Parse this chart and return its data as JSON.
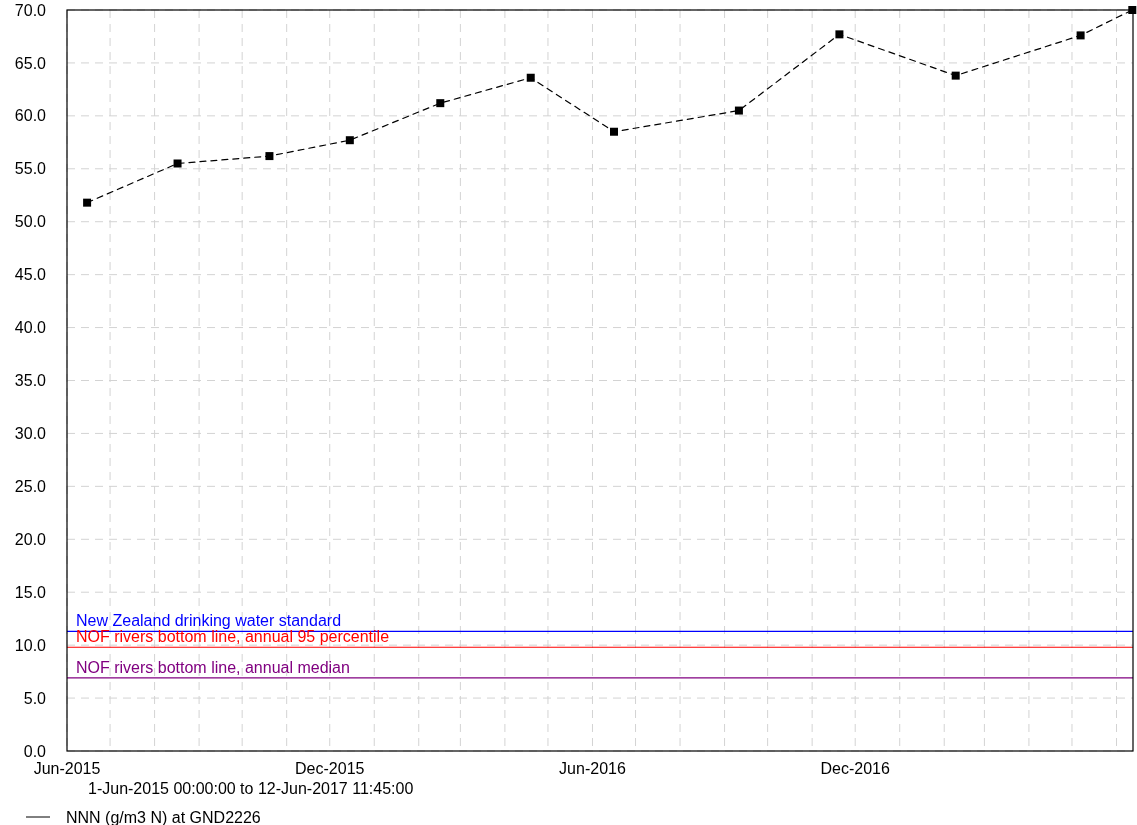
{
  "chart_data": {
    "type": "line",
    "xlabel": "1-Jun-2015 00:00:00 to 12-Jun-2017 11:45:00",
    "x": [
      "2015-06-15",
      "2015-08-17",
      "2015-10-20",
      "2015-12-15",
      "2016-02-16",
      "2016-04-19",
      "2016-06-16",
      "2016-09-11",
      "2016-11-20",
      "2017-02-09",
      "2017-05-07",
      "2017-06-12"
    ],
    "series": [
      {
        "name": "NNN (g/m3 N) at GND2226",
        "color": "#000000",
        "values": [
          51.8,
          55.5,
          56.2,
          57.7,
          61.2,
          63.6,
          58.5,
          60.5,
          67.7,
          63.8,
          67.6,
          70.0
        ]
      }
    ],
    "xlim": [
      "2015-06-01",
      "2017-06-12T11:45"
    ],
    "xticks": [
      {
        "value": "2015-06-01",
        "label": "Jun-2015"
      },
      {
        "value": "2015-07-01",
        "label": null
      },
      {
        "value": "2015-08-01",
        "label": null
      },
      {
        "value": "2015-09-01",
        "label": null
      },
      {
        "value": "2015-10-01",
        "label": null
      },
      {
        "value": "2015-11-01",
        "label": null
      },
      {
        "value": "2015-12-01",
        "label": "Dec-2015"
      },
      {
        "value": "2016-01-01",
        "label": null
      },
      {
        "value": "2016-02-01",
        "label": null
      },
      {
        "value": "2016-03-01",
        "label": null
      },
      {
        "value": "2016-04-01",
        "label": null
      },
      {
        "value": "2016-05-01",
        "label": null
      },
      {
        "value": "2016-06-01",
        "label": "Jun-2016"
      },
      {
        "value": "2016-07-01",
        "label": null
      },
      {
        "value": "2016-08-01",
        "label": null
      },
      {
        "value": "2016-09-01",
        "label": null
      },
      {
        "value": "2016-10-01",
        "label": null
      },
      {
        "value": "2016-11-01",
        "label": null
      },
      {
        "value": "2016-12-01",
        "label": "Dec-2016"
      },
      {
        "value": "2017-01-01",
        "label": null
      },
      {
        "value": "2017-02-01",
        "label": null
      },
      {
        "value": "2017-03-01",
        "label": null
      },
      {
        "value": "2017-04-01",
        "label": null
      },
      {
        "value": "2017-05-01",
        "label": null
      },
      {
        "value": "2017-06-01",
        "label": null
      }
    ],
    "ylim": [
      0,
      70
    ],
    "yticks": [
      {
        "value": 0,
        "label": "0.0"
      },
      {
        "value": 5,
        "label": "5.0"
      },
      {
        "value": 10,
        "label": "10.0"
      },
      {
        "value": 15,
        "label": "15.0"
      },
      {
        "value": 20,
        "label": "20.0"
      },
      {
        "value": 25,
        "label": "25.0"
      },
      {
        "value": 30,
        "label": "30.0"
      },
      {
        "value": 35,
        "label": "35.0"
      },
      {
        "value": 40,
        "label": "40.0"
      },
      {
        "value": 45,
        "label": "45.0"
      },
      {
        "value": 50,
        "label": "50.0"
      },
      {
        "value": 55,
        "label": "55.0"
      },
      {
        "value": 60,
        "label": "60.0"
      },
      {
        "value": 65,
        "label": "65.0"
      },
      {
        "value": 70,
        "label": "70.0"
      }
    ],
    "ref_lines": [
      {
        "axis": "y",
        "value": 11.3,
        "label": "New Zealand drinking water standard",
        "color": "#0000ff"
      },
      {
        "axis": "y",
        "value": 9.8,
        "label": "NOF rivers bottom line, annual 95 percentile",
        "color": "#ff0000"
      },
      {
        "axis": "y",
        "value": 6.9,
        "label": "NOF rivers bottom line, annual median",
        "color": "#800080"
      }
    ],
    "grid": true,
    "legend": "bottom",
    "marker": "square",
    "line_style": "dashed"
  }
}
